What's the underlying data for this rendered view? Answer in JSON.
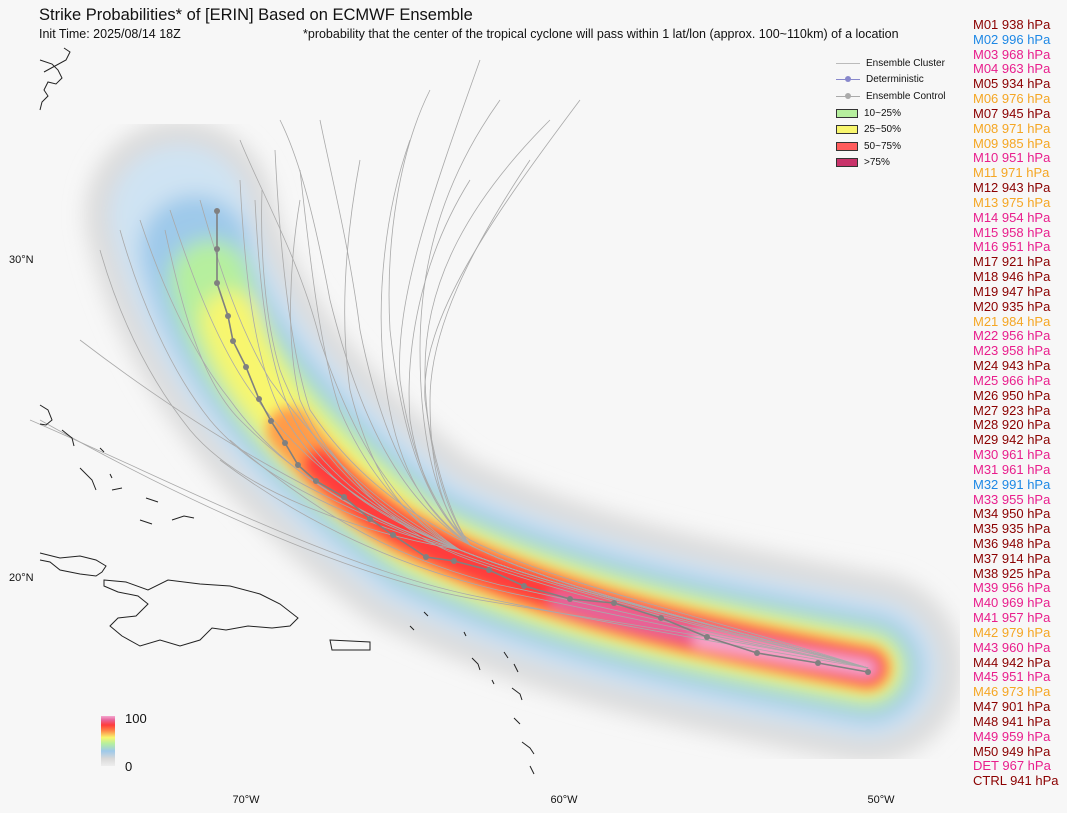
{
  "header": {
    "title": "Strike Probabilities* of [ERIN] Based on ECMWF Ensemble",
    "init_time": "Init Time: 2025/08/14 18Z",
    "footnote": "*probability that the center of the tropical cyclone will pass within 1 lat/lon (approx. 100~110km) of a location"
  },
  "axes": {
    "lat_labels": [
      "30°N",
      "20°N"
    ],
    "lon_labels": [
      "70°W",
      "60°W",
      "50°W"
    ]
  },
  "legend": {
    "items": [
      {
        "label": "Ensemble Cluster",
        "kind": "line",
        "color": "#bbbbbb"
      },
      {
        "label": "Deterministic",
        "kind": "line-dot",
        "color": "#8888cc"
      },
      {
        "label": "Ensemble Control",
        "kind": "line-dot",
        "color": "#aaaaaa"
      },
      {
        "label": "10~25%",
        "kind": "box",
        "color": "#b6ef9e"
      },
      {
        "label": "25~50%",
        "kind": "box",
        "color": "#f8f66e"
      },
      {
        "label": "50~75%",
        "kind": "box",
        "color": "#ff5c5c"
      },
      {
        "label": ">75%",
        "kind": "box",
        "color": "#c8336a"
      }
    ]
  },
  "colorbar": {
    "max_label": "100",
    "min_label": "0"
  },
  "members": [
    {
      "label": "M01 938 hPa",
      "color": "#8b0000"
    },
    {
      "label": "M02 996 hPa",
      "color": "#1e88e5"
    },
    {
      "label": "M03 968 hPa",
      "color": "#e91e8c"
    },
    {
      "label": "M04 963 hPa",
      "color": "#e91e8c"
    },
    {
      "label": "M05 934 hPa",
      "color": "#8b0000"
    },
    {
      "label": "M06 976 hPa",
      "color": "#f5a623"
    },
    {
      "label": "M07 945 hPa",
      "color": "#8b0000"
    },
    {
      "label": "M08 971 hPa",
      "color": "#f5a623"
    },
    {
      "label": "M09 985 hPa",
      "color": "#f5a623"
    },
    {
      "label": "M10 951 hPa",
      "color": "#e91e8c"
    },
    {
      "label": "M11 971 hPa",
      "color": "#f5a623"
    },
    {
      "label": "M12 943 hPa",
      "color": "#8b0000"
    },
    {
      "label": "M13 975 hPa",
      "color": "#f5a623"
    },
    {
      "label": "M14 954 hPa",
      "color": "#e91e8c"
    },
    {
      "label": "M15 958 hPa",
      "color": "#e91e8c"
    },
    {
      "label": "M16 951 hPa",
      "color": "#e91e8c"
    },
    {
      "label": "M17 921 hPa",
      "color": "#8b0000"
    },
    {
      "label": "M18 946 hPa",
      "color": "#8b0000"
    },
    {
      "label": "M19 947 hPa",
      "color": "#8b0000"
    },
    {
      "label": "M20 935 hPa",
      "color": "#8b0000"
    },
    {
      "label": "M21 984 hPa",
      "color": "#f5a623"
    },
    {
      "label": "M22 956 hPa",
      "color": "#e91e8c"
    },
    {
      "label": "M23 958 hPa",
      "color": "#e91e8c"
    },
    {
      "label": "M24 943 hPa",
      "color": "#8b0000"
    },
    {
      "label": "M25 966 hPa",
      "color": "#e91e8c"
    },
    {
      "label": "M26 950 hPa",
      "color": "#8b0000"
    },
    {
      "label": "M27 923 hPa",
      "color": "#8b0000"
    },
    {
      "label": "M28 920 hPa",
      "color": "#8b0000"
    },
    {
      "label": "M29 942 hPa",
      "color": "#8b0000"
    },
    {
      "label": "M30 961 hPa",
      "color": "#e91e8c"
    },
    {
      "label": "M31 961 hPa",
      "color": "#e91e8c"
    },
    {
      "label": "M32 991 hPa",
      "color": "#1e88e5"
    },
    {
      "label": "M33 955 hPa",
      "color": "#e91e8c"
    },
    {
      "label": "M34 950 hPa",
      "color": "#8b0000"
    },
    {
      "label": "M35 935 hPa",
      "color": "#8b0000"
    },
    {
      "label": "M36 948 hPa",
      "color": "#8b0000"
    },
    {
      "label": "M37 914 hPa",
      "color": "#8b0000"
    },
    {
      "label": "M38 925 hPa",
      "color": "#8b0000"
    },
    {
      "label": "M39 956 hPa",
      "color": "#e91e8c"
    },
    {
      "label": "M40 969 hPa",
      "color": "#e91e8c"
    },
    {
      "label": "M41 957 hPa",
      "color": "#e91e8c"
    },
    {
      "label": "M42 979 hPa",
      "color": "#f5a623"
    },
    {
      "label": "M43 960 hPa",
      "color": "#e91e8c"
    },
    {
      "label": "M44 942 hPa",
      "color": "#8b0000"
    },
    {
      "label": "M45 951 hPa",
      "color": "#e91e8c"
    },
    {
      "label": "M46 973 hPa",
      "color": "#f5a623"
    },
    {
      "label": "M47 901 hPa",
      "color": "#8b0000"
    },
    {
      "label": "M48 941 hPa",
      "color": "#8b0000"
    },
    {
      "label": "M49 959 hPa",
      "color": "#e91e8c"
    },
    {
      "label": "M50 949 hPa",
      "color": "#8b0000"
    },
    {
      "label": "DET 967 hPa",
      "color": "#e91e8c"
    },
    {
      "label": "CTRL 941 hPa",
      "color": "#8b0000"
    }
  ]
}
